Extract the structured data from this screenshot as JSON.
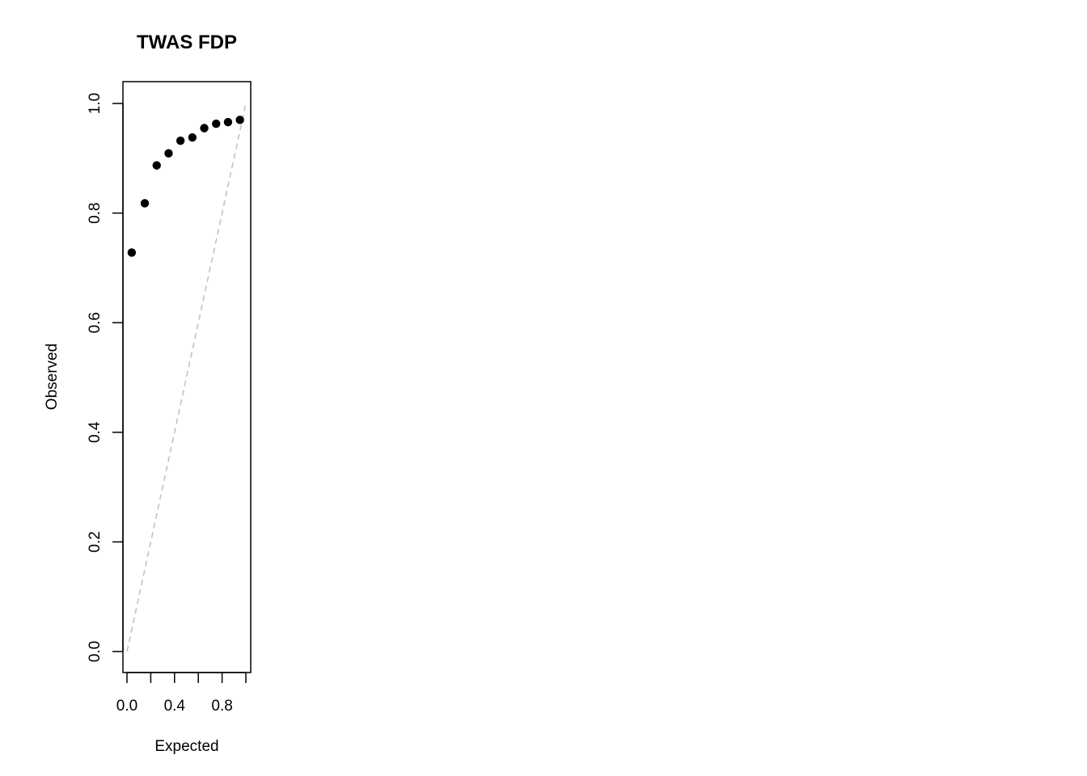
{
  "chart_data": {
    "type": "scatter",
    "title": "TWAS FDP",
    "xlabel": "Expected",
    "ylabel": "Observed",
    "xlim": [
      0.0,
      1.0
    ],
    "ylim": [
      0.0,
      1.0
    ],
    "x_ticks": [
      0.0,
      0.2,
      0.4,
      0.6,
      0.8,
      1.0
    ],
    "x_tick_labels": [
      "0.0",
      "",
      "0.4",
      "",
      "0.8",
      ""
    ],
    "y_ticks": [
      0.0,
      0.2,
      0.4,
      0.6,
      0.8,
      1.0
    ],
    "y_tick_labels": [
      "0.0",
      "0.2",
      "0.4",
      "0.6",
      "0.8",
      "1.0"
    ],
    "grid": false,
    "legend": "none",
    "reference_line": {
      "from": [
        0,
        0
      ],
      "to": [
        1,
        1
      ],
      "style": "dashed",
      "color": "#bebebe"
    },
    "point_color": "#000000",
    "series": [
      {
        "x": [
          0.04,
          0.15,
          0.25,
          0.35,
          0.45,
          0.55,
          0.65,
          0.75,
          0.85,
          0.95
        ],
        "y": [
          0.728,
          0.818,
          0.887,
          0.909,
          0.932,
          0.938,
          0.955,
          0.963,
          0.966,
          0.97
        ]
      }
    ]
  }
}
